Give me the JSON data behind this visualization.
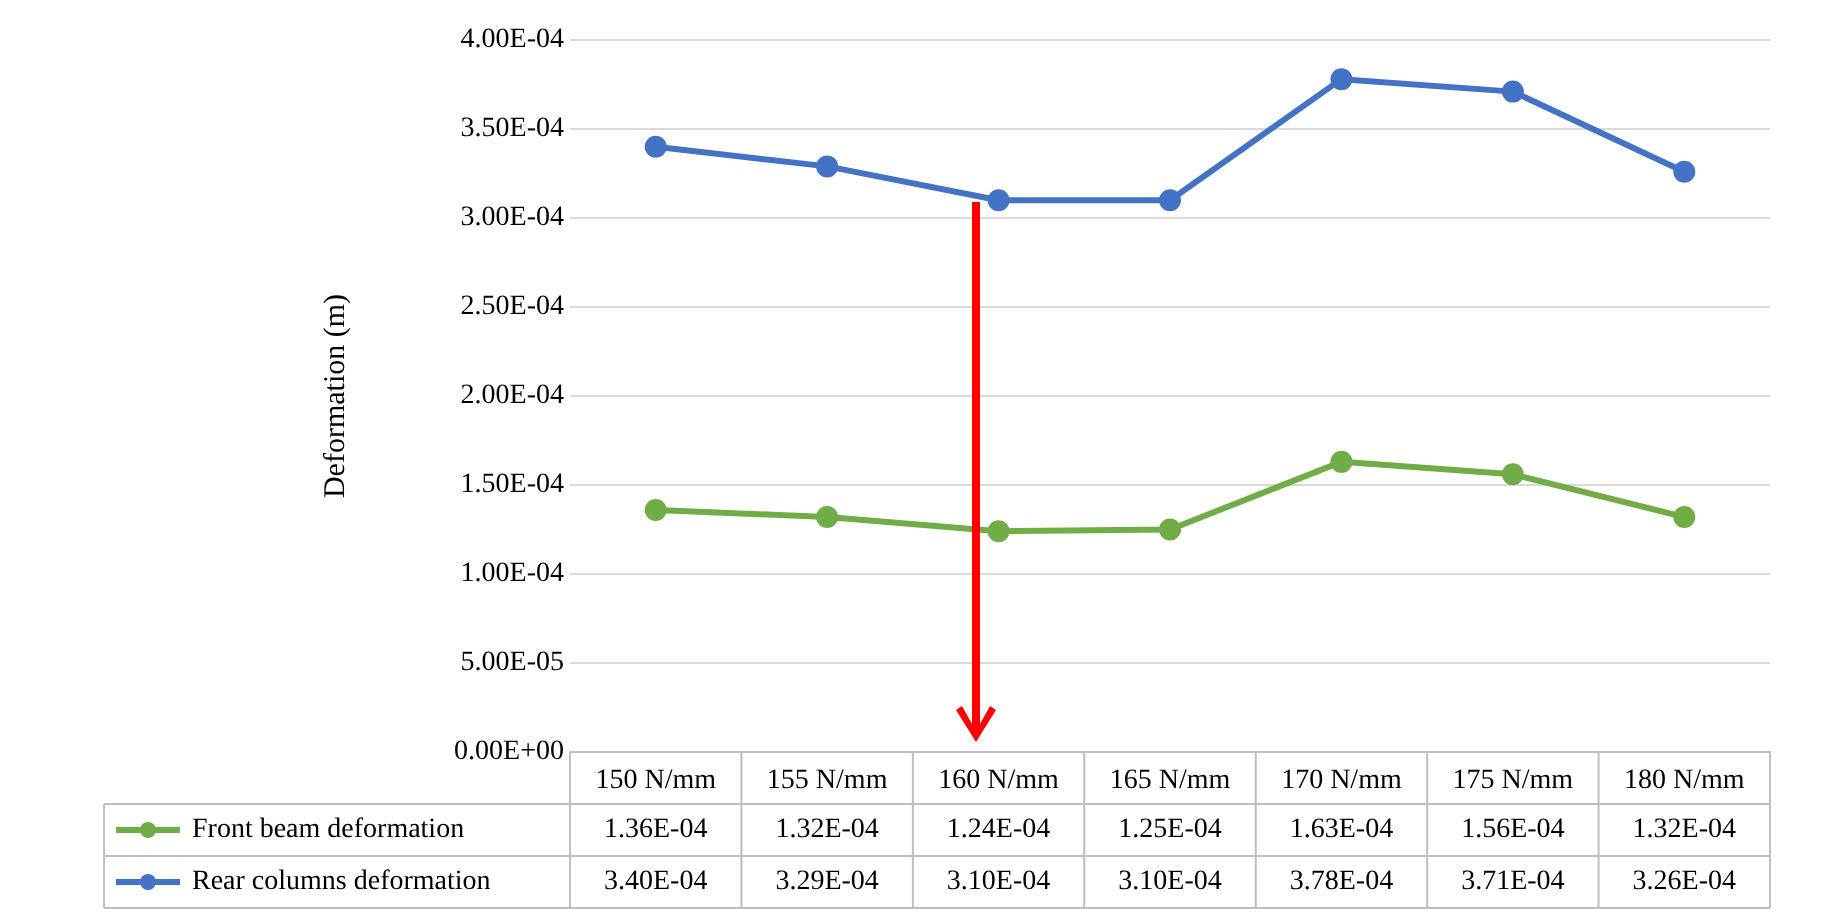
{
  "chart_data": {
    "type": "line",
    "ylabel": "Deformation (m)",
    "categories": [
      "150 N/mm",
      "155 N/mm",
      "160 N/mm",
      "165 N/mm",
      "170 N/mm",
      "175 N/mm",
      "180 N/mm"
    ],
    "series": [
      {
        "name": "Front beam deformation",
        "color": "#70ad47",
        "values": [
          0.000136,
          0.000132,
          0.000124,
          0.000125,
          0.000163,
          0.000156,
          0.000132
        ],
        "value_labels": [
          "1.36E-04",
          "1.32E-04",
          "1.24E-04",
          "1.25E-04",
          "1.63E-04",
          "1.56E-04",
          "1.32E-04"
        ]
      },
      {
        "name": "Rear columns deformation",
        "color": "#4472c4",
        "values": [
          0.00034,
          0.000329,
          0.00031,
          0.00031,
          0.000378,
          0.000371,
          0.000326
        ],
        "value_labels": [
          "3.40E-04",
          "3.29E-04",
          "3.10E-04",
          "3.10E-04",
          "3.78E-04",
          "3.71E-04",
          "3.26E-04"
        ]
      }
    ],
    "ylim": [
      0,
      0.0004
    ],
    "yticks": [
      {
        "value": 0,
        "label": "0.00E+00"
      },
      {
        "value": 5e-05,
        "label": "5.00E-05"
      },
      {
        "value": 0.0001,
        "label": "1.00E-04"
      },
      {
        "value": 0.00015,
        "label": "1.50E-04"
      },
      {
        "value": 0.0002,
        "label": "2.00E-04"
      },
      {
        "value": 0.00025,
        "label": "2.50E-04"
      },
      {
        "value": 0.0003,
        "label": "3.00E-04"
      },
      {
        "value": 0.00035,
        "label": "3.50E-04"
      },
      {
        "value": 0.0004,
        "label": "4.00E-04"
      }
    ],
    "grid": "y",
    "marker": "circle",
    "line_style": "solid",
    "legend": "bottom"
  }
}
